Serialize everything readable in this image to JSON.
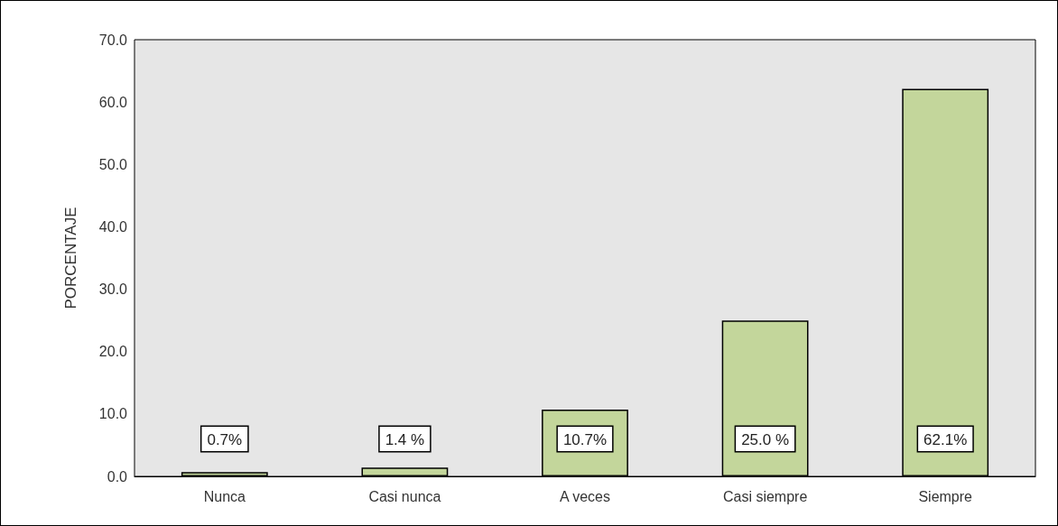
{
  "chart_data": {
    "type": "bar",
    "ylabel": "PORCENTAJE",
    "categories": [
      "Nunca",
      "Casi nunca",
      "A veces",
      "Casi siempre",
      "Siempre"
    ],
    "values": [
      0.7,
      1.4,
      10.7,
      25.0,
      62.1
    ],
    "value_labels": [
      "0.7%",
      "1.4 %",
      "10.7%",
      "25.0 %",
      "62.1%"
    ],
    "color": "#c3d69b",
    "ylim": [
      0,
      70
    ],
    "yticks": [
      {
        "value": 0,
        "label": "0.0"
      },
      {
        "value": 10,
        "label": "10.0"
      },
      {
        "value": 20,
        "label": "20.0"
      },
      {
        "value": 30,
        "label": "30.0"
      },
      {
        "value": 40,
        "label": "40.0"
      },
      {
        "value": 50,
        "label": "50.0"
      },
      {
        "value": 60,
        "label": "60.0"
      },
      {
        "value": 70,
        "label": "70.0"
      }
    ],
    "grid": false
  }
}
